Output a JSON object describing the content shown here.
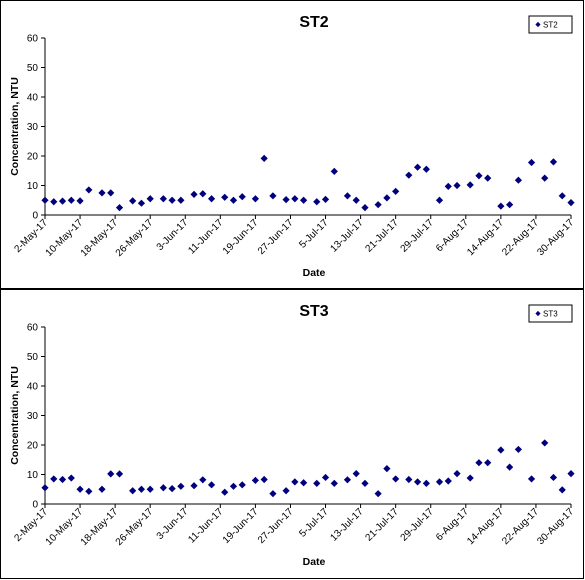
{
  "chart_data": [
    {
      "type": "scatter",
      "title": "ST2",
      "xlabel": "Date",
      "ylabel": "Concentration, NTU",
      "ylim": [
        0,
        60
      ],
      "yticks": [
        0,
        10,
        20,
        30,
        40,
        50,
        60
      ],
      "xlim": [
        "2017-05-02",
        "2017-08-30"
      ],
      "xtick_labels": [
        "2-May-17",
        "10-May-17",
        "18-May-17",
        "26-May-17",
        "3-Jun-17",
        "11-Jun-17",
        "19-Jun-17",
        "27-Jun-17",
        "5-Jul-17",
        "13-Jul-17",
        "21-Jul-17",
        "29-Jul-17",
        "6-Aug-17",
        "14-Aug-17",
        "22-Aug-17",
        "30-Aug-17"
      ],
      "grid": false,
      "legend": "top-right",
      "marker_color": "#00007f",
      "series": [
        {
          "name": "ST2",
          "points": [
            [
              "2017-05-02",
              5
            ],
            [
              "2017-05-04",
              4.5
            ],
            [
              "2017-05-06",
              4.7
            ],
            [
              "2017-05-08",
              5
            ],
            [
              "2017-05-10",
              4.8
            ],
            [
              "2017-05-12",
              8.5
            ],
            [
              "2017-05-15",
              7.5
            ],
            [
              "2017-05-17",
              7.5
            ],
            [
              "2017-05-19",
              2.5
            ],
            [
              "2017-05-22",
              4.8
            ],
            [
              "2017-05-24",
              4
            ],
            [
              "2017-05-26",
              5.5
            ],
            [
              "2017-05-29",
              5.5
            ],
            [
              "2017-05-31",
              5
            ],
            [
              "2017-06-02",
              5
            ],
            [
              "2017-06-05",
              7
            ],
            [
              "2017-06-07",
              7.2
            ],
            [
              "2017-06-09",
              5.5
            ],
            [
              "2017-06-12",
              6
            ],
            [
              "2017-06-14",
              5
            ],
            [
              "2017-06-16",
              6.2
            ],
            [
              "2017-06-19",
              5.5
            ],
            [
              "2017-06-21",
              19.2
            ],
            [
              "2017-06-23",
              6.5
            ],
            [
              "2017-06-26",
              5.2
            ],
            [
              "2017-06-28",
              5.5
            ],
            [
              "2017-06-30",
              5
            ],
            [
              "2017-07-03",
              4.5
            ],
            [
              "2017-07-05",
              5.3
            ],
            [
              "2017-07-07",
              14.8
            ],
            [
              "2017-07-10",
              6.5
            ],
            [
              "2017-07-12",
              5
            ],
            [
              "2017-07-14",
              2.5
            ],
            [
              "2017-07-17",
              3.5
            ],
            [
              "2017-07-19",
              5.8
            ],
            [
              "2017-07-21",
              8
            ],
            [
              "2017-07-24",
              13.5
            ],
            [
              "2017-07-26",
              16.2
            ],
            [
              "2017-07-28",
              15.5
            ],
            [
              "2017-07-31",
              5
            ],
            [
              "2017-08-02",
              9.7
            ],
            [
              "2017-08-04",
              10
            ],
            [
              "2017-08-07",
              10.2
            ],
            [
              "2017-08-09",
              13.3
            ],
            [
              "2017-08-11",
              12.5
            ],
            [
              "2017-08-14",
              3
            ],
            [
              "2017-08-16",
              3.5
            ],
            [
              "2017-08-18",
              11.8
            ],
            [
              "2017-08-21",
              17.8
            ],
            [
              "2017-08-24",
              12.5
            ],
            [
              "2017-08-26",
              18
            ],
            [
              "2017-08-28",
              6.5
            ],
            [
              "2017-08-30",
              4.2
            ]
          ]
        }
      ]
    },
    {
      "type": "scatter",
      "title": "ST3",
      "xlabel": "Date",
      "ylabel": "Concentration, NTU",
      "ylim": [
        0,
        60
      ],
      "yticks": [
        0,
        10,
        20,
        30,
        40,
        50,
        60
      ],
      "xlim": [
        "2017-05-02",
        "2017-08-30"
      ],
      "xtick_labels": [
        "2-May-17",
        "10-May-17",
        "18-May-17",
        "26-May-17",
        "3-Jun-17",
        "11-Jun-17",
        "19-Jun-17",
        "27-Jun-17",
        "5-Jul-17",
        "13-Jul-17",
        "21-Jul-17",
        "29-Jul-17",
        "6-Aug-17",
        "14-Aug-17",
        "22-Aug-17",
        "30-Aug-17"
      ],
      "grid": false,
      "legend": "top-right",
      "marker_color": "#00007f",
      "series": [
        {
          "name": "ST3",
          "points": [
            [
              "2017-05-02",
              5.5
            ],
            [
              "2017-05-04",
              8.5
            ],
            [
              "2017-05-06",
              8.3
            ],
            [
              "2017-05-08",
              8.8
            ],
            [
              "2017-05-10",
              5
            ],
            [
              "2017-05-12",
              4.3
            ],
            [
              "2017-05-15",
              5
            ],
            [
              "2017-05-17",
              10.2
            ],
            [
              "2017-05-19",
              10.2
            ],
            [
              "2017-05-22",
              4.5
            ],
            [
              "2017-05-24",
              5
            ],
            [
              "2017-05-26",
              5
            ],
            [
              "2017-05-29",
              5.5
            ],
            [
              "2017-05-31",
              5.2
            ],
            [
              "2017-06-02",
              6
            ],
            [
              "2017-06-05",
              6.2
            ],
            [
              "2017-06-07",
              8.2
            ],
            [
              "2017-06-09",
              6.5
            ],
            [
              "2017-06-12",
              4
            ],
            [
              "2017-06-14",
              6
            ],
            [
              "2017-06-16",
              6.5
            ],
            [
              "2017-06-19",
              8
            ],
            [
              "2017-06-21",
              8.3
            ],
            [
              "2017-06-23",
              3.5
            ],
            [
              "2017-06-26",
              4.5
            ],
            [
              "2017-06-28",
              7.5
            ],
            [
              "2017-06-30",
              7.2
            ],
            [
              "2017-07-03",
              7
            ],
            [
              "2017-07-05",
              9
            ],
            [
              "2017-07-07",
              7
            ],
            [
              "2017-07-10",
              8.2
            ],
            [
              "2017-07-12",
              10.3
            ],
            [
              "2017-07-14",
              7
            ],
            [
              "2017-07-17",
              3.5
            ],
            [
              "2017-07-19",
              12
            ],
            [
              "2017-07-21",
              8.5
            ],
            [
              "2017-07-24",
              8.3
            ],
            [
              "2017-07-26",
              7.5
            ],
            [
              "2017-07-28",
              7
            ],
            [
              "2017-07-31",
              7.5
            ],
            [
              "2017-08-02",
              7.8
            ],
            [
              "2017-08-04",
              10.3
            ],
            [
              "2017-08-07",
              8.8
            ],
            [
              "2017-08-09",
              14
            ],
            [
              "2017-08-11",
              14
            ],
            [
              "2017-08-14",
              18.3
            ],
            [
              "2017-08-16",
              12.5
            ],
            [
              "2017-08-18",
              18.5
            ],
            [
              "2017-08-21",
              8.5
            ],
            [
              "2017-08-24",
              20.7
            ],
            [
              "2017-08-26",
              9
            ],
            [
              "2017-08-28",
              4.8
            ],
            [
              "2017-08-30",
              10.3
            ]
          ]
        }
      ]
    }
  ]
}
